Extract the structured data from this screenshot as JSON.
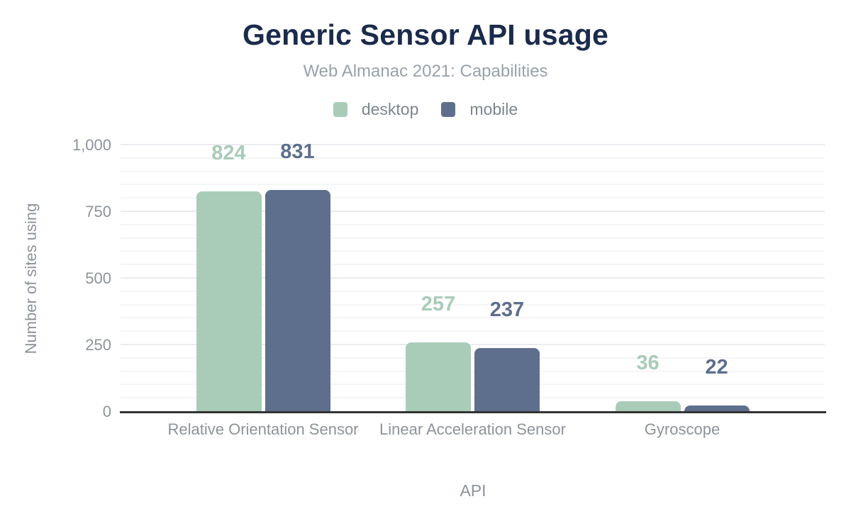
{
  "figure": {
    "title": "Generic Sensor API usage",
    "subtitle": "Web Almanac 2021: Capabilities"
  },
  "axes": {
    "y_title": "Number of sites using",
    "x_title": "API",
    "y_tick_values": [
      0,
      250,
      500,
      750,
      1000
    ],
    "y_tick_labels": [
      "0",
      "250",
      "500",
      "750",
      "1,000"
    ]
  },
  "chart_data": {
    "type": "bar",
    "title": "Generic Sensor API usage",
    "subtitle": "Web Almanac 2021: Capabilities",
    "categories": [
      "Relative Orientation Sensor",
      "Linear Acceleration Sensor",
      "Gyroscope"
    ],
    "series": [
      {
        "name": "desktop",
        "color": "#a9ccb8",
        "values": [
          824,
          257,
          36
        ]
      },
      {
        "name": "mobile",
        "color": "#5e6f8e",
        "values": [
          831,
          237,
          22
        ]
      }
    ],
    "xlabel": "API",
    "ylabel": "Number of sites using",
    "ylim": [
      0,
      1000
    ],
    "grid": "horizontal lines every 50, major every 250",
    "legend_position": "top",
    "data_labels": true
  },
  "colors": {
    "title": "#1b2b4b",
    "subtitle": "#99a1a9",
    "axis_text": "#8d939b",
    "axis_line": "#333333",
    "grid_major": "#e9ebee",
    "grid_minor": "#f4f5f6",
    "background": "#ffffff"
  }
}
